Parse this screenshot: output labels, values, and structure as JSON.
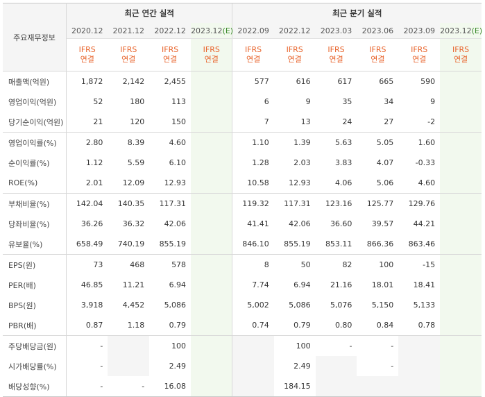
{
  "header": {
    "corner_label": "주요재무정보",
    "annual_group": "최근 연간 실적",
    "quarter_group": "최근 분기 실적",
    "annual_periods": [
      "2020.12",
      "2021.12",
      "2022.12",
      "2023.12(E)"
    ],
    "quarter_periods": [
      "2022.09",
      "2022.12",
      "2023.03",
      "2023.06",
      "2023.09",
      "2023.12(E)"
    ],
    "ifrs_line1": "IFRS",
    "ifrs_line2": "연결"
  },
  "rows": [
    {
      "label": "매출액(억원)",
      "values": [
        "1,872",
        "2,142",
        "2,455",
        "",
        "577",
        "616",
        "617",
        "665",
        "590",
        ""
      ]
    },
    {
      "label": "영업이익(억원)",
      "values": [
        "52",
        "180",
        "113",
        "",
        "6",
        "9",
        "35",
        "34",
        "9",
        ""
      ]
    },
    {
      "label": "당기순이익(억원)",
      "values": [
        "21",
        "120",
        "150",
        "",
        "7",
        "13",
        "24",
        "27",
        "-2",
        ""
      ]
    },
    {
      "label": "영업이익률(%)",
      "values": [
        "2.80",
        "8.39",
        "4.60",
        "",
        "1.10",
        "1.39",
        "5.63",
        "5.05",
        "1.60",
        ""
      ]
    },
    {
      "label": "순이익률(%)",
      "values": [
        "1.12",
        "5.59",
        "6.10",
        "",
        "1.28",
        "2.03",
        "3.83",
        "4.07",
        "-0.33",
        ""
      ]
    },
    {
      "label": "ROE(%)",
      "values": [
        "2.01",
        "12.09",
        "12.93",
        "",
        "10.58",
        "12.93",
        "4.06",
        "5.06",
        "4.60",
        ""
      ]
    },
    {
      "label": "부채비율(%)",
      "values": [
        "142.04",
        "140.35",
        "117.31",
        "",
        "119.32",
        "117.31",
        "123.16",
        "125.77",
        "129.76",
        ""
      ]
    },
    {
      "label": "당좌비율(%)",
      "values": [
        "36.26",
        "36.32",
        "42.06",
        "",
        "41.41",
        "42.06",
        "36.60",
        "39.57",
        "44.21",
        ""
      ]
    },
    {
      "label": "유보율(%)",
      "values": [
        "658.49",
        "740.19",
        "855.19",
        "",
        "846.10",
        "855.19",
        "853.11",
        "866.36",
        "863.46",
        ""
      ]
    },
    {
      "label": "EPS(원)",
      "values": [
        "73",
        "468",
        "578",
        "",
        "8",
        "50",
        "82",
        "100",
        "-15",
        ""
      ]
    },
    {
      "label": "PER(배)",
      "values": [
        "46.85",
        "11.21",
        "6.94",
        "",
        "7.74",
        "6.94",
        "21.16",
        "18.01",
        "18.41",
        ""
      ]
    },
    {
      "label": "BPS(원)",
      "values": [
        "3,918",
        "4,452",
        "5,086",
        "",
        "5,002",
        "5,086",
        "5,076",
        "5,150",
        "5,133",
        ""
      ]
    },
    {
      "label": "PBR(배)",
      "values": [
        "0.87",
        "1.18",
        "0.79",
        "",
        "0.74",
        "0.79",
        "0.80",
        "0.84",
        "0.78",
        ""
      ]
    },
    {
      "label": "주당배당금(원)",
      "values": [
        "-",
        "",
        "100",
        "",
        "",
        "100",
        "-",
        "-",
        "",
        ""
      ]
    },
    {
      "label": "시가배당률(%)",
      "values": [
        "-",
        "",
        "2.49",
        "",
        "",
        "2.49",
        "",
        "-",
        "",
        ""
      ]
    },
    {
      "label": "배당성향(%)",
      "values": [
        "-",
        "-",
        "16.08",
        "",
        "",
        "184.15",
        "",
        "",
        "",
        ""
      ]
    }
  ],
  "blank_cells": [
    [
      13,
      1
    ],
    [
      13,
      4
    ],
    [
      13,
      8
    ],
    [
      14,
      1
    ],
    [
      14,
      4
    ],
    [
      14,
      6
    ],
    [
      14,
      8
    ],
    [
      15,
      4
    ],
    [
      15,
      6
    ],
    [
      15,
      7
    ],
    [
      15,
      8
    ]
  ],
  "colors": {
    "ifrs_text": "#e8642c",
    "negative": "#cc0000",
    "estimate_bg": "#f2f9ee",
    "header_bg": "#f5f5f5"
  }
}
